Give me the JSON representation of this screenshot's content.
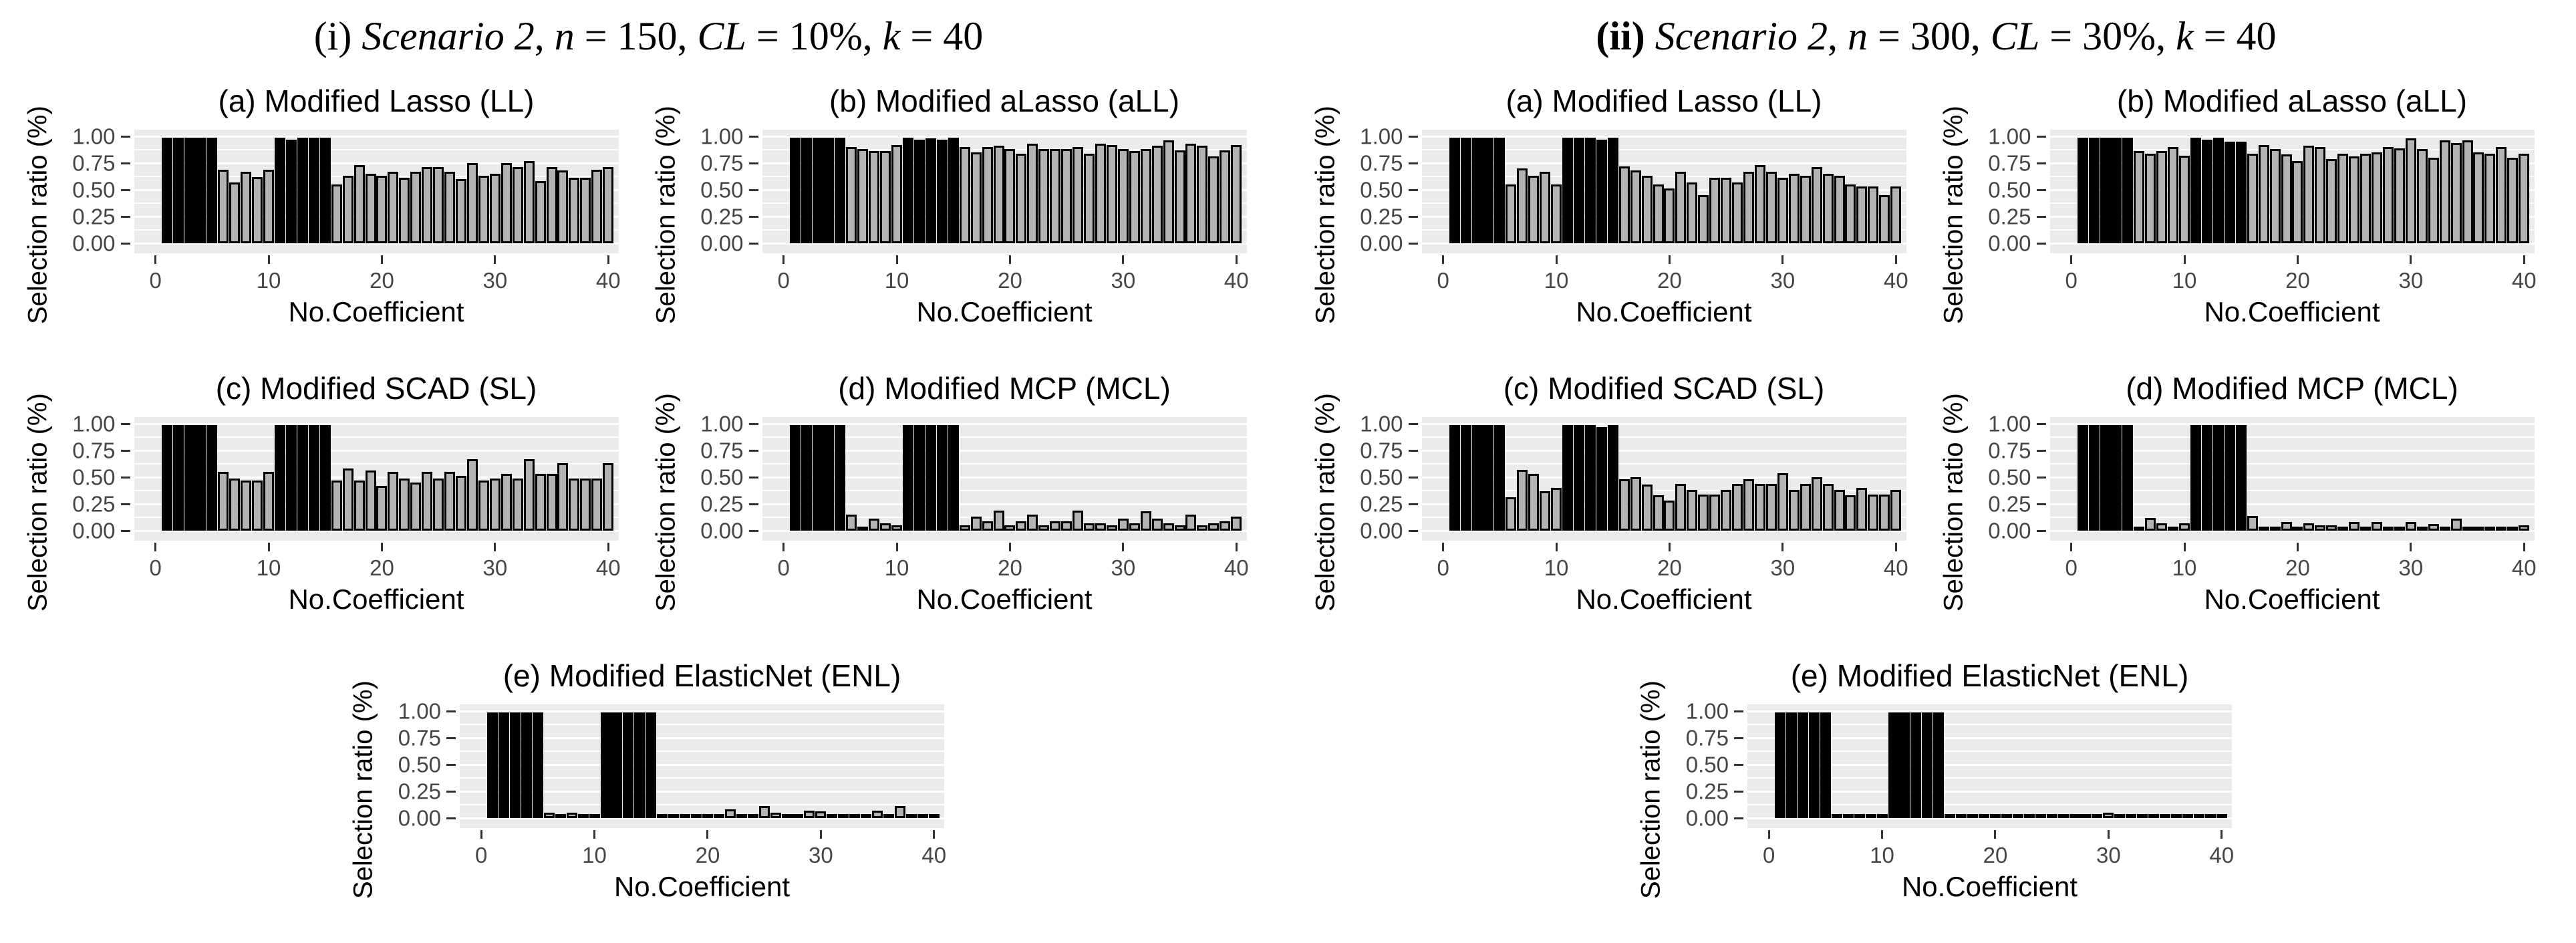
{
  "figure": {
    "y_axis_label": "Selection ratio (%)",
    "x_axis_label": "No.Coefficient",
    "y_ticks": [
      {
        "label": "1.00",
        "v": 1.0
      },
      {
        "label": "0.75",
        "v": 0.75
      },
      {
        "label": "0.50",
        "v": 0.5
      },
      {
        "label": "0.25",
        "v": 0.25
      },
      {
        "label": "0.00",
        "v": 0.0
      }
    ],
    "x_ticks": [
      {
        "label": "0",
        "v": 0
      },
      {
        "label": "10",
        "v": 10
      },
      {
        "label": "20",
        "v": 20
      },
      {
        "label": "30",
        "v": 30
      },
      {
        "label": "40",
        "v": 40
      }
    ],
    "colors": {
      "panel_background": "#ebebeb",
      "gridline": "#ffffff",
      "bar_gray": "#b3b3b3",
      "bar_black": "#000000",
      "bar_outline": "#000000",
      "axis_text": "#464646",
      "title_text": "#000000"
    }
  },
  "panels": [
    {
      "id": "i",
      "title_plain": "(i) Scenario 2, n = 150, CL = 10%, k = 40",
      "title_parts": [
        {
          "t": "(i) ",
          "s": "r"
        },
        {
          "t": "Scenario 2",
          "s": "i"
        },
        {
          "t": ", ",
          "s": "r"
        },
        {
          "t": "n",
          "s": "i"
        },
        {
          "t": " = 150, ",
          "s": "r"
        },
        {
          "t": "CL",
          "s": "i"
        },
        {
          "t": " = 10%, ",
          "s": "r"
        },
        {
          "t": "k",
          "s": "i"
        },
        {
          "t": " = 40",
          "s": "r"
        }
      ],
      "subplot_chart_indices": [
        0,
        1,
        2,
        3,
        4
      ]
    },
    {
      "id": "ii",
      "title_plain": "(ii) Scenario 2, n = 300, CL = 30%, k = 40",
      "title_parts": [
        {
          "t": "(ii) ",
          "s": "b"
        },
        {
          "t": "Scenario 2",
          "s": "i"
        },
        {
          "t": ", ",
          "s": "r"
        },
        {
          "t": "n",
          "s": "i"
        },
        {
          "t": " = 300, ",
          "s": "r"
        },
        {
          "t": "CL",
          "s": "i"
        },
        {
          "t": " = 30%, ",
          "s": "r"
        },
        {
          "t": "k",
          "s": "i"
        },
        {
          "t": " = 40",
          "s": "r"
        }
      ],
      "subplot_chart_indices": [
        5,
        6,
        7,
        8,
        9
      ]
    }
  ],
  "chart_data": [
    {
      "type": "bar",
      "panel": "(i)",
      "title": "(a) Modified Lasso (LL)",
      "xlabel": "No.Coefficient",
      "ylabel": "Selection ratio (%)",
      "x_range": [
        1,
        40
      ],
      "ylim": [
        0,
        1
      ],
      "yticks": [
        0,
        0.25,
        0.5,
        0.75,
        1.0
      ],
      "black_ranges": [
        [
          1,
          5
        ],
        [
          11,
          15
        ]
      ],
      "values": [
        0.99,
        0.99,
        0.99,
        0.99,
        0.99,
        0.69,
        0.57,
        0.67,
        0.62,
        0.69,
        0.99,
        0.97,
        0.99,
        0.99,
        0.99,
        0.55,
        0.63,
        0.73,
        0.65,
        0.63,
        0.67,
        0.61,
        0.67,
        0.71,
        0.71,
        0.67,
        0.6,
        0.75,
        0.63,
        0.65,
        0.75,
        0.71,
        0.77,
        0.58,
        0.71,
        0.68,
        0.61,
        0.61,
        0.69,
        0.71
      ]
    },
    {
      "type": "bar",
      "panel": "(i)",
      "title": "(b) Modified aLasso (aLL)",
      "xlabel": "No.Coefficient",
      "ylabel": "Selection ratio (%)",
      "x_range": [
        1,
        40
      ],
      "ylim": [
        0,
        1
      ],
      "yticks": [
        0,
        0.25,
        0.5,
        0.75,
        1.0
      ],
      "black_ranges": [
        [
          1,
          5
        ],
        [
          11,
          15
        ]
      ],
      "values": [
        0.99,
        0.99,
        0.99,
        0.99,
        0.99,
        0.9,
        0.88,
        0.86,
        0.86,
        0.92,
        0.99,
        0.97,
        0.98,
        0.97,
        0.99,
        0.9,
        0.85,
        0.9,
        0.91,
        0.88,
        0.84,
        0.93,
        0.88,
        0.88,
        0.88,
        0.9,
        0.84,
        0.93,
        0.92,
        0.88,
        0.86,
        0.88,
        0.91,
        0.96,
        0.87,
        0.93,
        0.91,
        0.81,
        0.87,
        0.92
      ]
    },
    {
      "type": "bar",
      "panel": "(i)",
      "title": "(c) Modified SCAD (SL)",
      "xlabel": "No.Coefficient",
      "ylabel": "Selection ratio (%)",
      "x_range": [
        1,
        40
      ],
      "ylim": [
        0,
        1
      ],
      "yticks": [
        0,
        0.25,
        0.5,
        0.75,
        1.0
      ],
      "black_ranges": [
        [
          1,
          5
        ],
        [
          11,
          15
        ]
      ],
      "values": [
        0.99,
        0.99,
        0.99,
        0.99,
        0.99,
        0.55,
        0.49,
        0.47,
        0.47,
        0.55,
        0.99,
        0.99,
        0.99,
        0.99,
        0.99,
        0.47,
        0.58,
        0.47,
        0.56,
        0.42,
        0.55,
        0.49,
        0.45,
        0.55,
        0.49,
        0.55,
        0.51,
        0.67,
        0.47,
        0.49,
        0.53,
        0.49,
        0.67,
        0.53,
        0.53,
        0.63,
        0.49,
        0.49,
        0.49,
        0.63
      ]
    },
    {
      "type": "bar",
      "panel": "(i)",
      "title": "(d) Modified MCP (MCL)",
      "xlabel": "No.Coefficient",
      "ylabel": "Selection ratio (%)",
      "x_range": [
        1,
        40
      ],
      "ylim": [
        0,
        1
      ],
      "yticks": [
        0,
        0.25,
        0.5,
        0.75,
        1.0
      ],
      "black_ranges": [
        [
          1,
          5
        ],
        [
          11,
          15
        ]
      ],
      "values": [
        0.99,
        0.99,
        0.99,
        0.99,
        0.99,
        0.15,
        0.03,
        0.11,
        0.07,
        0.05,
        0.99,
        0.99,
        0.99,
        0.99,
        0.99,
        0.05,
        0.13,
        0.09,
        0.19,
        0.05,
        0.09,
        0.15,
        0.05,
        0.09,
        0.09,
        0.19,
        0.07,
        0.07,
        0.05,
        0.11,
        0.07,
        0.18,
        0.11,
        0.07,
        0.05,
        0.15,
        0.05,
        0.07,
        0.09,
        0.13
      ]
    },
    {
      "type": "bar",
      "panel": "(i)",
      "title": "(e) Modified ElasticNet (ENL)",
      "xlabel": "No.Coefficient",
      "ylabel": "Selection ratio (%)",
      "x_range": [
        1,
        40
      ],
      "ylim": [
        0,
        1
      ],
      "yticks": [
        0,
        0.25,
        0.5,
        0.75,
        1.0
      ],
      "black_ranges": [
        [
          1,
          5
        ],
        [
          11,
          15
        ]
      ],
      "values": [
        0.99,
        0.99,
        0.99,
        0.99,
        0.99,
        0.05,
        0.03,
        0.05,
        0.02,
        0.01,
        0.99,
        0.99,
        0.99,
        0.99,
        0.99,
        0.03,
        0.0,
        0.02,
        0.02,
        0.01,
        0.03,
        0.08,
        0.03,
        0.03,
        0.11,
        0.05,
        0.03,
        0.03,
        0.07,
        0.06,
        0.01,
        0.03,
        0.0,
        0.02,
        0.07,
        0.0,
        0.11,
        0.03,
        0.02,
        0.02
      ]
    },
    {
      "type": "bar",
      "panel": "(ii)",
      "title": "(a) Modified Lasso (LL)",
      "xlabel": "No.Coefficient",
      "ylabel": "Selection ratio (%)",
      "x_range": [
        1,
        40
      ],
      "ylim": [
        0,
        1
      ],
      "yticks": [
        0,
        0.25,
        0.5,
        0.75,
        1.0
      ],
      "black_ranges": [
        [
          1,
          5
        ],
        [
          11,
          15
        ]
      ],
      "values": [
        0.99,
        0.99,
        0.99,
        0.99,
        0.99,
        0.55,
        0.7,
        0.63,
        0.67,
        0.55,
        0.99,
        0.99,
        0.99,
        0.97,
        0.99,
        0.72,
        0.68,
        0.63,
        0.55,
        0.51,
        0.67,
        0.57,
        0.45,
        0.61,
        0.61,
        0.57,
        0.67,
        0.73,
        0.67,
        0.61,
        0.65,
        0.63,
        0.71,
        0.65,
        0.63,
        0.55,
        0.53,
        0.53,
        0.45,
        0.53
      ]
    },
    {
      "type": "bar",
      "panel": "(ii)",
      "title": "(b) Modified aLasso (aLL)",
      "xlabel": "No.Coefficient",
      "ylabel": "Selection ratio (%)",
      "x_range": [
        1,
        40
      ],
      "ylim": [
        0,
        1
      ],
      "yticks": [
        0,
        0.25,
        0.5,
        0.75,
        1.0
      ],
      "black_ranges": [
        [
          1,
          5
        ],
        [
          11,
          15
        ]
      ],
      "values": [
        0.99,
        0.99,
        0.99,
        0.99,
        0.99,
        0.86,
        0.84,
        0.86,
        0.9,
        0.82,
        0.99,
        0.97,
        0.99,
        0.95,
        0.95,
        0.84,
        0.92,
        0.88,
        0.83,
        0.77,
        0.91,
        0.9,
        0.79,
        0.84,
        0.81,
        0.84,
        0.85,
        0.9,
        0.89,
        0.98,
        0.88,
        0.8,
        0.96,
        0.94,
        0.96,
        0.85,
        0.84,
        0.9,
        0.8,
        0.84
      ]
    },
    {
      "type": "bar",
      "panel": "(ii)",
      "title": "(c) Modified SCAD (SL)",
      "xlabel": "No.Coefficient",
      "ylabel": "Selection ratio (%)",
      "x_range": [
        1,
        40
      ],
      "ylim": [
        0,
        1
      ],
      "yticks": [
        0,
        0.25,
        0.5,
        0.75,
        1.0
      ],
      "black_ranges": [
        [
          1,
          5
        ],
        [
          11,
          15
        ]
      ],
      "values": [
        0.99,
        0.99,
        0.99,
        0.99,
        0.99,
        0.31,
        0.57,
        0.53,
        0.37,
        0.4,
        0.99,
        0.99,
        0.99,
        0.97,
        0.99,
        0.48,
        0.5,
        0.43,
        0.33,
        0.28,
        0.44,
        0.38,
        0.34,
        0.34,
        0.38,
        0.44,
        0.48,
        0.44,
        0.44,
        0.54,
        0.38,
        0.44,
        0.5,
        0.44,
        0.38,
        0.33,
        0.4,
        0.34,
        0.34,
        0.38
      ]
    },
    {
      "type": "bar",
      "panel": "(ii)",
      "title": "(d) Modified MCP (MCL)",
      "xlabel": "No.Coefficient",
      "ylabel": "Selection ratio (%)",
      "x_range": [
        1,
        40
      ],
      "ylim": [
        0,
        1
      ],
      "yticks": [
        0,
        0.25,
        0.5,
        0.75,
        1.0
      ],
      "black_ranges": [
        [
          1,
          5
        ],
        [
          11,
          15
        ]
      ],
      "values": [
        0.99,
        0.99,
        0.99,
        0.99,
        0.99,
        0.03,
        0.12,
        0.07,
        0.03,
        0.07,
        0.99,
        0.99,
        0.99,
        0.99,
        0.99,
        0.14,
        0.03,
        0.03,
        0.08,
        0.04,
        0.07,
        0.05,
        0.05,
        0.04,
        0.08,
        0.04,
        0.08,
        0.03,
        0.03,
        0.08,
        0.03,
        0.06,
        0.03,
        0.11,
        0.03,
        0.03,
        0.01,
        0.04,
        0.04,
        0.05
      ]
    },
    {
      "type": "bar",
      "panel": "(ii)",
      "title": "(e) Modified ElasticNet (ENL)",
      "xlabel": "No.Coefficient",
      "ylabel": "Selection ratio (%)",
      "x_range": [
        1,
        40
      ],
      "ylim": [
        0,
        1
      ],
      "yticks": [
        0,
        0.25,
        0.5,
        0.75,
        1.0
      ],
      "black_ranges": [
        [
          1,
          5
        ],
        [
          11,
          15
        ]
      ],
      "values": [
        0.99,
        0.99,
        0.99,
        0.99,
        0.99,
        0.0,
        0.03,
        0.03,
        0.0,
        0.01,
        0.99,
        0.99,
        0.99,
        0.99,
        0.99,
        0.02,
        0.01,
        0.03,
        0.01,
        0.01,
        0.02,
        0.01,
        0.03,
        0.02,
        0.02,
        0.0,
        0.03,
        0.01,
        0.0,
        0.05,
        0.01,
        0.0,
        0.0,
        0.02,
        0.0,
        0.01,
        0.02,
        0.01,
        0.04,
        0.0
      ]
    }
  ]
}
